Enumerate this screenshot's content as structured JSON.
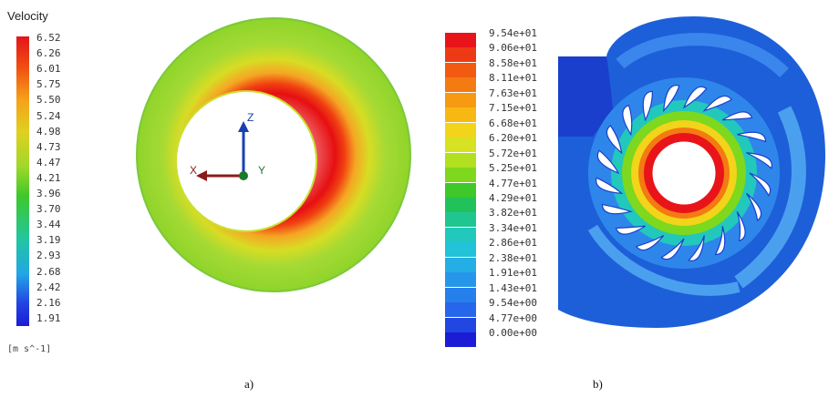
{
  "panel_a": {
    "legend": {
      "title": "Velocity",
      "unit": "[m s^-1]",
      "ticks": [
        "6.52",
        "6.26",
        "6.01",
        "5.75",
        "5.50",
        "5.24",
        "4.98",
        "4.73",
        "4.47",
        "4.21",
        "3.96",
        "3.70",
        "3.44",
        "3.19",
        "2.93",
        "2.68",
        "2.42",
        "2.16",
        "1.91"
      ]
    },
    "triad": {
      "x": "X",
      "y": "Y",
      "z": "Z"
    },
    "caption": "a)"
  },
  "panel_b": {
    "legend": {
      "ticks": [
        "9.54e+01",
        "9.06e+01",
        "8.58e+01",
        "8.11e+01",
        "7.63e+01",
        "7.15e+01",
        "6.68e+01",
        "6.20e+01",
        "5.72e+01",
        "5.25e+01",
        "4.77e+01",
        "4.29e+01",
        "3.82e+01",
        "3.34e+01",
        "2.86e+01",
        "2.38e+01",
        "1.91e+01",
        "1.43e+01",
        "9.54e+00",
        "4.77e+00",
        "0.00e+00"
      ],
      "colors": [
        "#e8141a",
        "#ee3a14",
        "#f25a12",
        "#f47a12",
        "#f69a12",
        "#f8b812",
        "#f2d41a",
        "#d6e222",
        "#b0e020",
        "#7dd81e",
        "#3ec82a",
        "#22c25a",
        "#20c690",
        "#22c8bc",
        "#22c2d8",
        "#24aee6",
        "#2696ea",
        "#2680ec",
        "#2666ea",
        "#2246e2",
        "#1c1cd6"
      ]
    },
    "caption": "b)"
  },
  "colors": {
    "hot": "#e60f12",
    "warm": "#f5a623",
    "mid": "#8fd42a",
    "outer": "#9cd83a",
    "base_blue": "#1d5fd9"
  }
}
